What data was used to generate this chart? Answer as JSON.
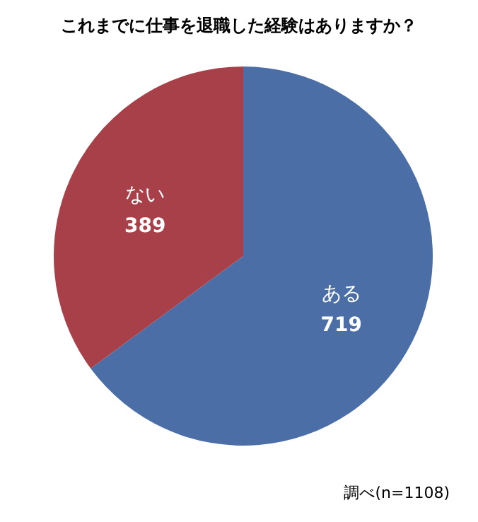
{
  "chart_data": {
    "type": "pie",
    "title": "これまでに仕事を退職した経験はありますか？",
    "categories": [
      "ある",
      "ない"
    ],
    "values": [
      719,
      389
    ],
    "colors": [
      "#4a6ea5",
      "#a8404a"
    ],
    "data_labels": true,
    "annotations": [
      "調べ(n=1108)"
    ]
  }
}
